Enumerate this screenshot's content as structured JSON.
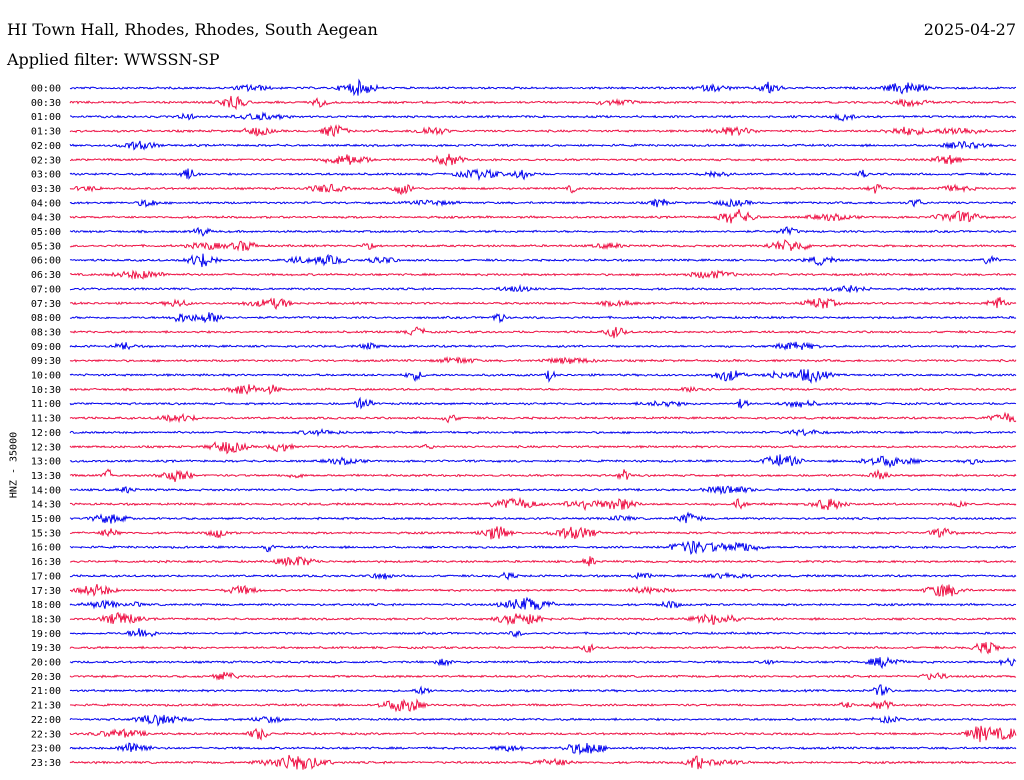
{
  "header": {
    "station": "HI Town Hall, Rhodes, Rhodes, South Aegean",
    "date": "2025-04-27",
    "filter": "Applied filter: WWSSN-SP"
  },
  "colors": {
    "even_trace": "#0000ee",
    "odd_trace": "#ee1144",
    "background": "#ffffff"
  },
  "chart_data": {
    "type": "line",
    "title": "HI Town Hall, Rhodes, Rhodes, South Aegean",
    "ylabel": "HNZ - 35000",
    "series_kind": "seismogram helicorder",
    "rows": [
      {
        "time": "00:00"
      },
      {
        "time": "00:30"
      },
      {
        "time": "01:00"
      },
      {
        "time": "01:30"
      },
      {
        "time": "02:00"
      },
      {
        "time": "02:30"
      },
      {
        "time": "03:00"
      },
      {
        "time": "03:30"
      },
      {
        "time": "04:00"
      },
      {
        "time": "04:30"
      },
      {
        "time": "05:00"
      },
      {
        "time": "05:30"
      },
      {
        "time": "06:00"
      },
      {
        "time": "06:30"
      },
      {
        "time": "07:00"
      },
      {
        "time": "07:30"
      },
      {
        "time": "08:00"
      },
      {
        "time": "08:30"
      },
      {
        "time": "09:00"
      },
      {
        "time": "09:30"
      },
      {
        "time": "10:00"
      },
      {
        "time": "10:30"
      },
      {
        "time": "11:00"
      },
      {
        "time": "11:30"
      },
      {
        "time": "12:00"
      },
      {
        "time": "12:30"
      },
      {
        "time": "13:00"
      },
      {
        "time": "13:30"
      },
      {
        "time": "14:00"
      },
      {
        "time": "14:30"
      },
      {
        "time": "15:00"
      },
      {
        "time": "15:30"
      },
      {
        "time": "16:00"
      },
      {
        "time": "16:30"
      },
      {
        "time": "17:00"
      },
      {
        "time": "17:30"
      },
      {
        "time": "18:00"
      },
      {
        "time": "18:30"
      },
      {
        "time": "19:00"
      },
      {
        "time": "19:30"
      },
      {
        "time": "20:00"
      },
      {
        "time": "20:30"
      },
      {
        "time": "21:00"
      },
      {
        "time": "21:30"
      },
      {
        "time": "22:00"
      },
      {
        "time": "22:30"
      },
      {
        "time": "23:00"
      },
      {
        "time": "23:30"
      }
    ]
  }
}
